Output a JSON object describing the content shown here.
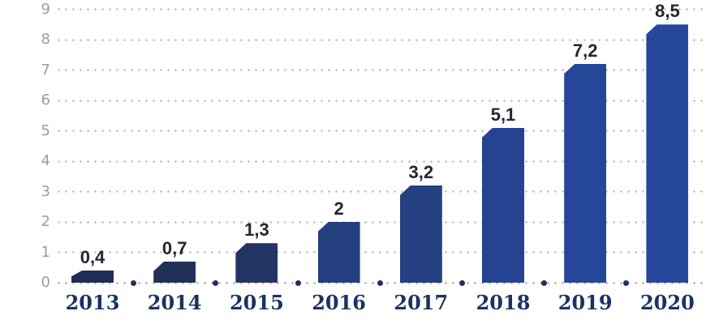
{
  "chart_data": {
    "type": "bar",
    "categories": [
      "2013",
      "2014",
      "2015",
      "2016",
      "2017",
      "2018",
      "2019",
      "2020"
    ],
    "values": [
      0.4,
      0.7,
      1.3,
      2,
      3.2,
      5.1,
      7.2,
      8.5
    ],
    "value_labels": [
      "0,4",
      "0,7",
      "1,3",
      "2",
      "3,2",
      "5,1",
      "7,2",
      "8,5"
    ],
    "ylim": [
      0,
      9
    ],
    "ytick_labels": [
      "0",
      "1",
      "2",
      "3",
      "4",
      "5",
      "6",
      "7",
      "8",
      "9"
    ],
    "xlabel": "",
    "ylabel": "",
    "grid": "horizontal-dotted",
    "legend": "none",
    "bar_colors": [
      "#1f2d55",
      "#203059",
      "#223564",
      "#243f7d",
      "#254182",
      "#254391",
      "#264698",
      "#26479b"
    ],
    "colors": {
      "gridline_dot": "#b4b4b4",
      "axis_tick_label": "#9c9c9c",
      "value_label": "#23262e",
      "category_label": "#1d3263",
      "separator_dot": "#1e3261",
      "background": "#ffffff"
    }
  }
}
